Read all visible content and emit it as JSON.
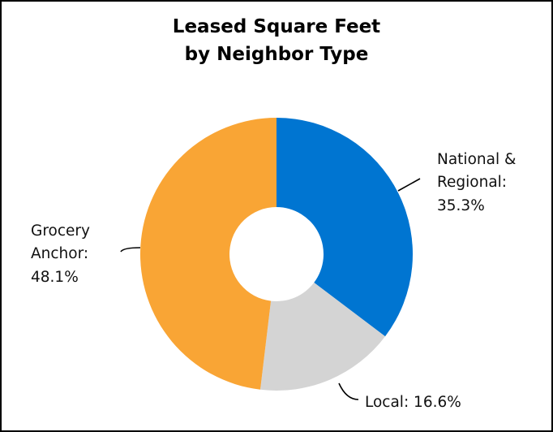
{
  "chart_data": {
    "type": "pie",
    "donut": true,
    "title": [
      "Leased Square Feet",
      "by Neighbor Type"
    ],
    "slices": [
      {
        "name": "National & Regional",
        "value": 35.3,
        "label_lines": [
          "National &",
          "Regional:",
          "35.3%"
        ],
        "color": "#0075d1"
      },
      {
        "name": "Local",
        "value": 16.6,
        "label_lines": [
          "Local: 16.6%"
        ],
        "color": "#d4d4d4"
      },
      {
        "name": "Grocery Anchor",
        "value": 48.1,
        "label_lines": [
          "Grocery",
          "Anchor:",
          "48.1%"
        ],
        "color": "#f9a535"
      }
    ],
    "start_angle": "12 o'clock",
    "direction": "clockwise",
    "legend": "none"
  }
}
